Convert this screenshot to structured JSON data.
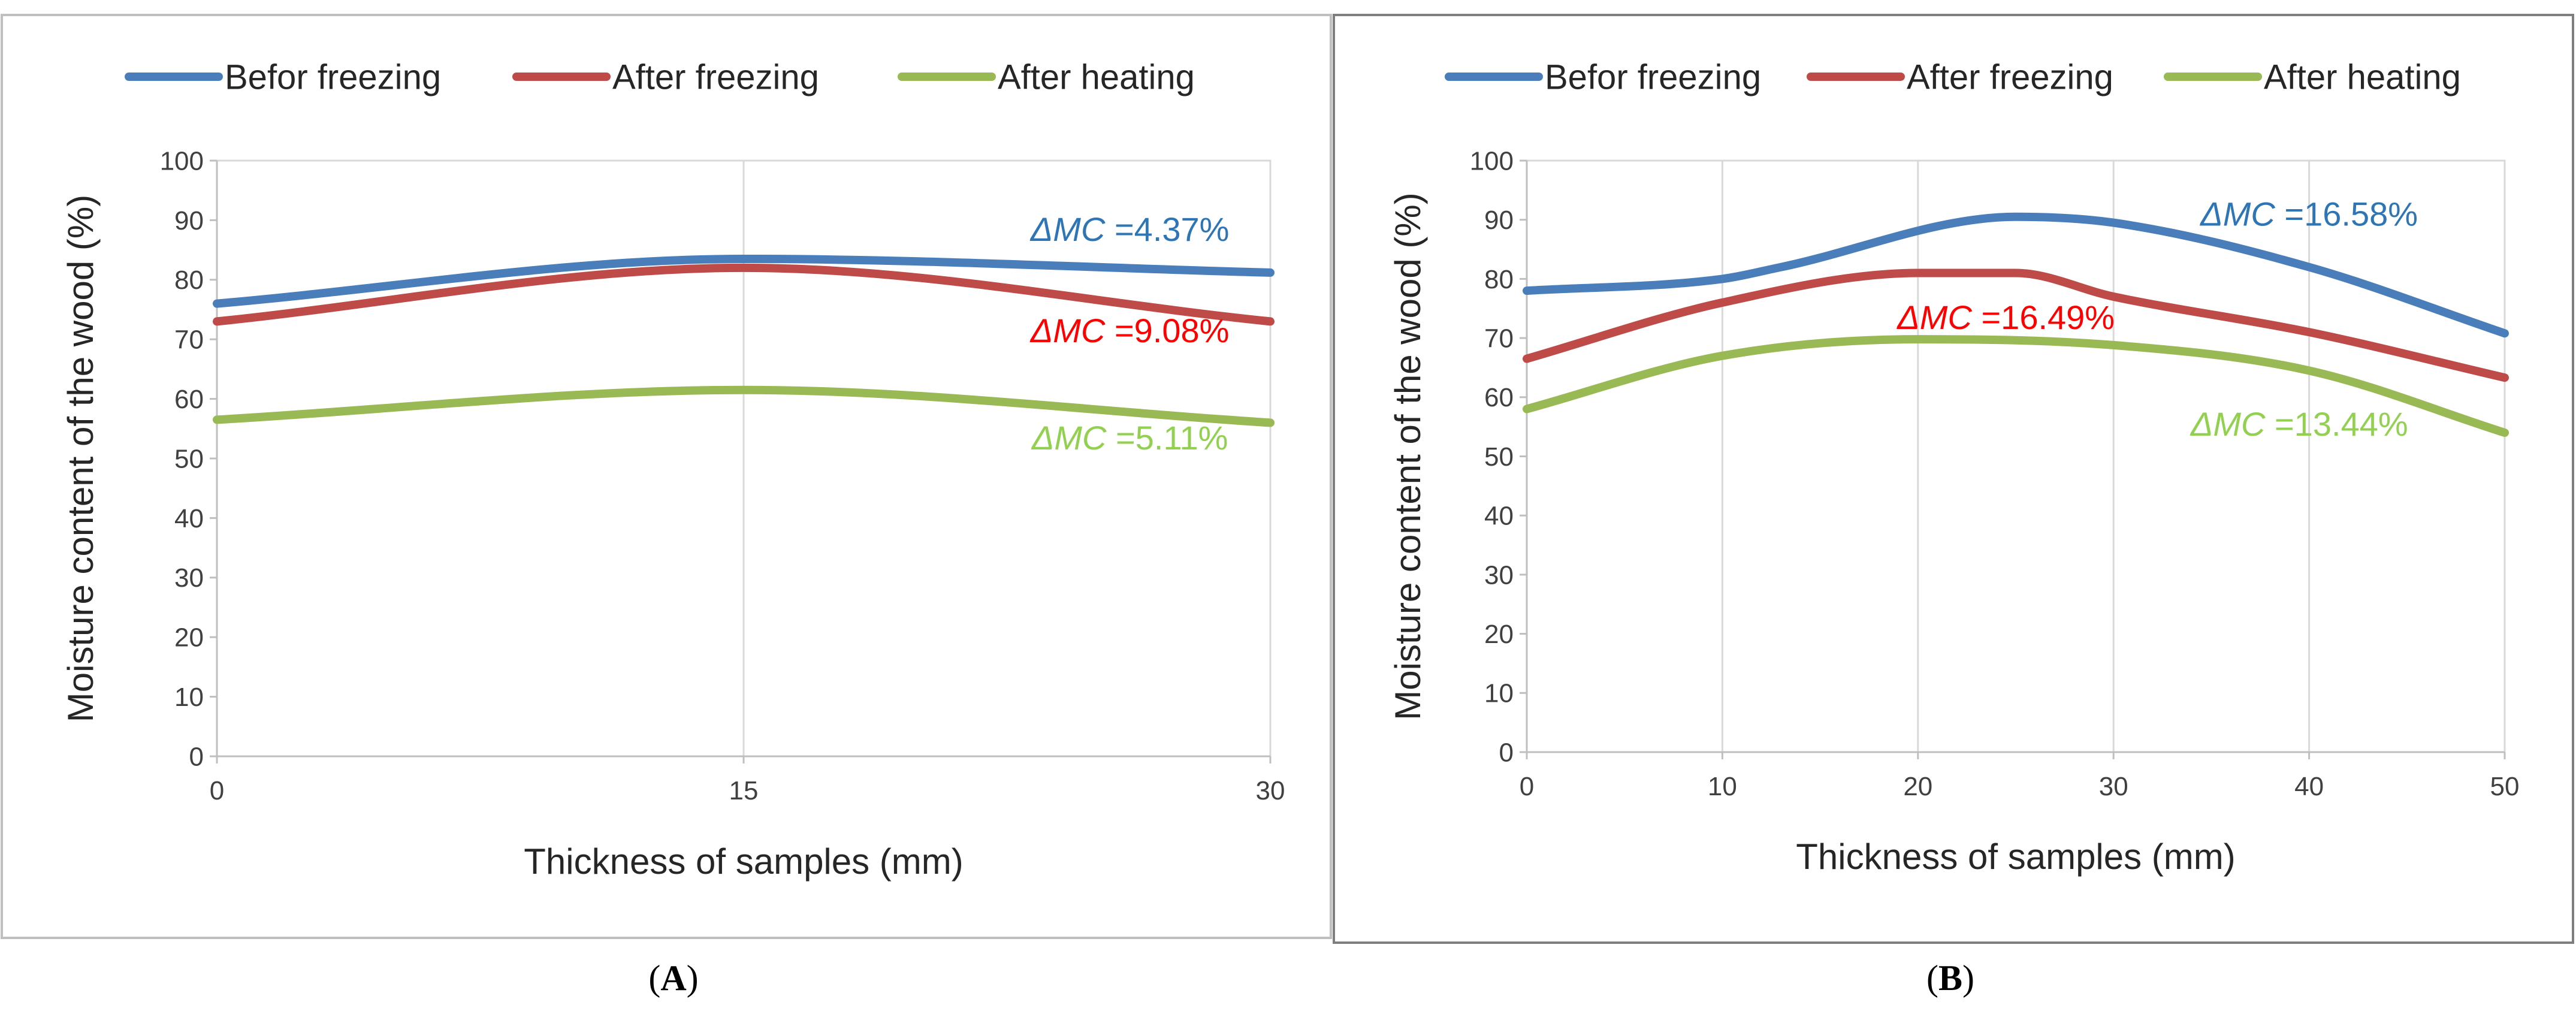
{
  "panels_caption": [
    "A",
    "B"
  ],
  "chart_data": [
    {
      "type": "line",
      "panel": "A",
      "title": "",
      "xlabel": "Thickness of samples (mm)",
      "ylabel": "Moisture content of the wood (%)",
      "x": [
        0,
        15,
        30
      ],
      "xticks": [
        0,
        15,
        30
      ],
      "xlim": [
        0,
        30
      ],
      "ylim": [
        0,
        100
      ],
      "yticks": [
        0,
        10,
        20,
        30,
        40,
        50,
        60,
        70,
        80,
        90,
        100
      ],
      "grid": "vertical",
      "legend": "top",
      "series": [
        {
          "name": "Befor freezing",
          "color": "#4a7ebb",
          "values": [
            76.0,
            83.5,
            81.2
          ]
        },
        {
          "name": "After freezing",
          "color": "#be4b48",
          "values": [
            73.0,
            82.0,
            73.0
          ]
        },
        {
          "name": "After heating",
          "color": "#98b954",
          "values": [
            56.5,
            61.5,
            56.0
          ]
        }
      ],
      "annotations": [
        {
          "prefix": "ΔMC",
          "value": " =4.37%",
          "color": "#2e75b6",
          "x": 26.0,
          "y": 88.5
        },
        {
          "prefix": "ΔMC",
          "value": " =9.08%",
          "color": "#ff0000",
          "x": 26.0,
          "y": 71.5
        },
        {
          "prefix": "ΔMC",
          "value": " =5.11%",
          "color": "#92d050",
          "x": 26.0,
          "y": 53.5
        }
      ]
    },
    {
      "type": "line",
      "panel": "B",
      "title": "",
      "xlabel": "Thickness of samples (mm)",
      "ylabel": "Moisture content of the wood (%)",
      "x": [
        0,
        10,
        13,
        25,
        30,
        40,
        50
      ],
      "xticks": [
        0,
        10,
        20,
        30,
        40,
        50
      ],
      "xlim": [
        0,
        50
      ],
      "ylim": [
        0,
        100
      ],
      "yticks": [
        0,
        10,
        20,
        30,
        40,
        50,
        60,
        70,
        80,
        90,
        100
      ],
      "grid": "vertical",
      "legend": "top",
      "series": [
        {
          "name": "Befor freezing",
          "color": "#4a7ebb",
          "x": [
            0,
            10,
            13,
            25,
            30,
            40,
            50
          ],
          "values": [
            78.0,
            80.0,
            82.0,
            90.5,
            89.5,
            82.0,
            70.8
          ]
        },
        {
          "name": "After freezing",
          "color": "#be4b48",
          "x": [
            0,
            10,
            20,
            25,
            30,
            40,
            50
          ],
          "values": [
            66.5,
            76.0,
            81.0,
            81.0,
            77.0,
            71.0,
            63.3
          ]
        },
        {
          "name": "After heating",
          "color": "#98b954",
          "x": [
            0,
            10,
            20,
            30,
            40,
            50
          ],
          "values": [
            58.0,
            67.0,
            69.8,
            68.8,
            64.5,
            54.0
          ]
        }
      ],
      "annotations": [
        {
          "prefix": "ΔMC",
          "value": " =16.58%",
          "color": "#2e75b6",
          "x": 40.0,
          "y": 91.0
        },
        {
          "prefix": "ΔMC",
          "value": " =16.49%",
          "color": "#ff0000",
          "x": 24.5,
          "y": 73.5
        },
        {
          "prefix": "ΔMC",
          "value": " =13.44%",
          "color": "#92d050",
          "x": 39.5,
          "y": 55.5
        }
      ]
    }
  ]
}
